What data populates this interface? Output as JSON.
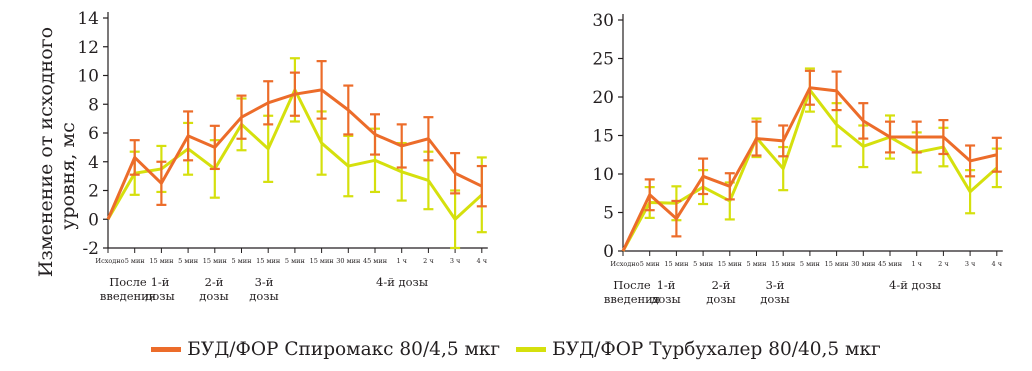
{
  "colors": {
    "spiromax": "#ec6c2a",
    "turbuhaler": "#d5e00d",
    "axis": "#231f20"
  },
  "legend": {
    "spiromax": "БУД/ФОР Спиромакс 80/4,5 мкг",
    "turbuhaler": "БУД/ФОР Турбухалер 80/40,5 мкг"
  },
  "shared": {
    "tick_labels": [
      "Исходно",
      "5 мин",
      "15 мин",
      "5 мин",
      "15 мин",
      "5 мин",
      "15 мин",
      "5 мин",
      "15 мин",
      "30 мин",
      "45 мин",
      "1 ч",
      "2 ч",
      "3 ч",
      "4 ч"
    ],
    "groups": [
      {
        "lines": [
          "После",
          "введения"
        ]
      },
      {
        "lines": [
          "1-й",
          "дозы"
        ]
      },
      {
        "lines": [
          "2-й",
          "дозы"
        ]
      },
      {
        "lines": [
          "3-й",
          "дозы"
        ]
      },
      {
        "lines": [
          "4-й дозы"
        ]
      }
    ]
  },
  "chart_data": [
    {
      "type": "line",
      "title": "",
      "ylabel_lines": [
        "Изменение от исходного",
        "уровня, мс"
      ],
      "ylim": [
        -2,
        14
      ],
      "yticks": [
        -2,
        0,
        2,
        4,
        6,
        8,
        10,
        12,
        14
      ],
      "categories": [
        "Исходно",
        "5 мин",
        "15 мин",
        "5 мин",
        "15 мин",
        "5 мин",
        "15 мин",
        "5 мин",
        "15 мин",
        "30 мин",
        "45 мин",
        "1 ч",
        "2 ч",
        "3 ч",
        "4 ч"
      ],
      "series": [
        {
          "name": "БУД/ФОР Спиромакс 80/4,5 мкг",
          "values": [
            0,
            4.3,
            2.5,
            5.8,
            5.0,
            7.1,
            8.1,
            8.7,
            9.0,
            7.6,
            5.9,
            5.1,
            5.6,
            3.2,
            2.3
          ],
          "errors": [
            0,
            1.2,
            1.5,
            1.7,
            1.5,
            1.5,
            1.5,
            1.5,
            2.0,
            1.7,
            1.4,
            1.5,
            1.5,
            1.4,
            1.4
          ]
        },
        {
          "name": "БУД/ФОР Турбухалер 80/40,5 мкг",
          "values": [
            0,
            3.2,
            3.5,
            4.9,
            3.5,
            6.6,
            4.9,
            9.0,
            5.3,
            3.7,
            4.1,
            3.3,
            2.7,
            0.0,
            1.7
          ],
          "errors": [
            0,
            1.5,
            1.6,
            1.8,
            2.0,
            1.8,
            2.3,
            2.2,
            2.2,
            2.1,
            2.2,
            2.0,
            2.0,
            2.0,
            2.6
          ]
        }
      ]
    },
    {
      "type": "line",
      "title": "",
      "ylim": [
        0,
        30
      ],
      "yticks": [
        0,
        5,
        10,
        15,
        20,
        25,
        30
      ],
      "categories": [
        "Исходно",
        "5 мин",
        "15 мин",
        "5 мин",
        "15 мин",
        "5 мин",
        "15 мин",
        "5 мин",
        "15 мин",
        "30 мин",
        "45 мин",
        "1 ч",
        "2 ч",
        "3 ч",
        "4 ч"
      ],
      "series": [
        {
          "name": "БУД/ФОР Спиромакс 80/4,5 мкг",
          "values": [
            0,
            7.3,
            4.2,
            9.7,
            8.4,
            14.6,
            14.3,
            21.2,
            20.8,
            16.9,
            14.8,
            14.8,
            14.8,
            11.7,
            12.5
          ],
          "errors": [
            0,
            2.0,
            2.3,
            2.3,
            1.7,
            2.2,
            2.0,
            2.2,
            2.5,
            2.3,
            2.0,
            2.0,
            2.2,
            2.0,
            2.2
          ]
        },
        {
          "name": "БУД/ФОР Турбухалер 80/40,5 мкг",
          "values": [
            0,
            6.3,
            6.2,
            8.3,
            6.5,
            14.7,
            10.7,
            20.9,
            16.4,
            13.6,
            14.8,
            12.8,
            13.5,
            7.7,
            10.8
          ],
          "errors": [
            0,
            2.0,
            2.2,
            2.2,
            2.4,
            2.5,
            2.8,
            2.8,
            2.8,
            2.7,
            2.8,
            2.6,
            2.5,
            2.8,
            2.5
          ]
        }
      ]
    }
  ]
}
